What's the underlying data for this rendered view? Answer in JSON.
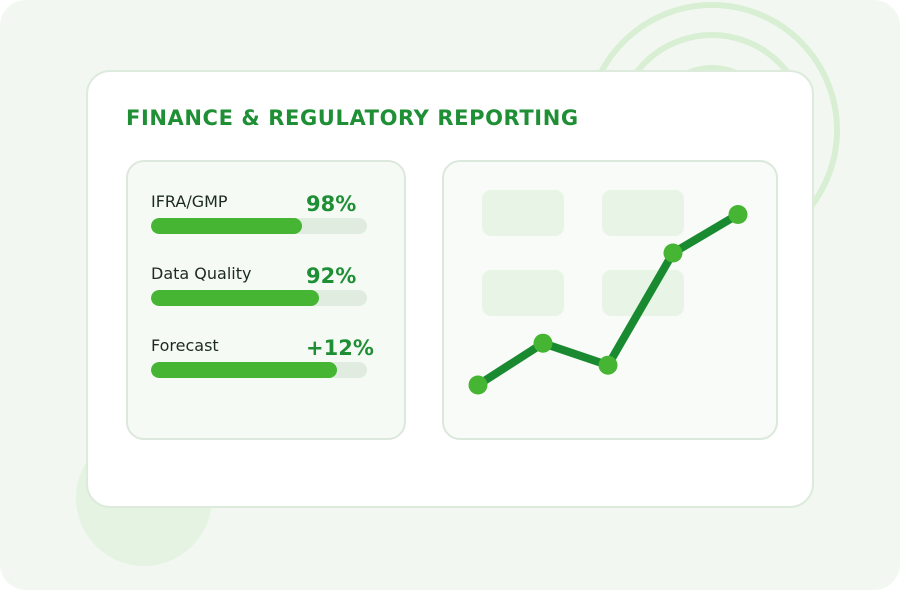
{
  "card": {
    "title": "FINANCE & REGULATORY REPORTING"
  },
  "metrics": [
    {
      "label": "IFRA/GMP",
      "value": "98%",
      "progress": 0.7
    },
    {
      "label": "Data Quality",
      "value": "92%",
      "progress": 0.78
    },
    {
      "label": "Forecast",
      "value": "+12%",
      "progress": 0.86
    }
  ],
  "colors": {
    "accent": "#1f8f35",
    "bar": "#45b533",
    "line": "#1a8a30",
    "point": "#45b533",
    "background": "#f2f8f1"
  },
  "chart_data": {
    "type": "line",
    "x": [
      1,
      2,
      3,
      4,
      5
    ],
    "values": [
      1.0,
      2.9,
      1.9,
      7.0,
      8.75
    ],
    "ylim": [
      0,
      10
    ],
    "grid": false,
    "legend": false
  }
}
